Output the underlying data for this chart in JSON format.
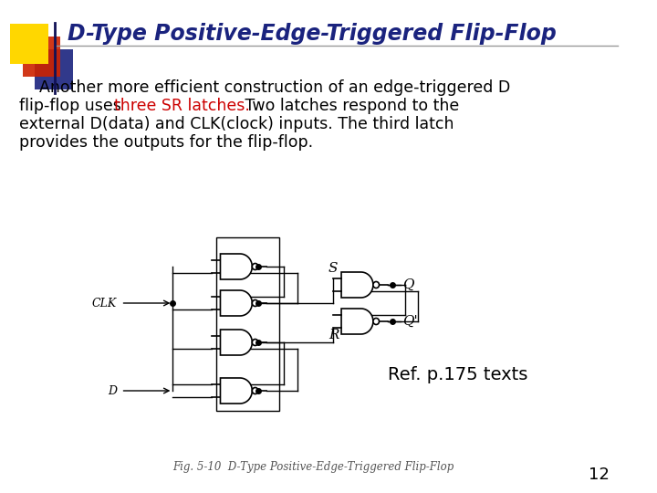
{
  "title": "D-Type Positive-Edge-Triggered Flip-Flop",
  "title_color": "#1a237e",
  "bg_color": "#ffffff",
  "body_line1": "    Another more efficient construction of an edge-triggered D",
  "body_line2_a": "flip-flop uses ",
  "body_line2_b": "three SR latches.",
  "body_line2_c": " Two latches respond to the",
  "body_line3": "external D(data) and CLK(clock) inputs. The third latch",
  "body_line4": "provides the outputs for the flip-flop.",
  "body_color": "#000000",
  "highlight_color": "#cc0000",
  "ref_text": "Ref. p.175 texts",
  "fig_caption": "Fig. 5-10  D-Type Positive-Edge-Triggered Flip-Flop",
  "page_number": "12",
  "accent_yellow": "#FFD700",
  "accent_red": "#CC2200",
  "accent_blue": "#1a237e",
  "line_color": "#aaaaaa"
}
